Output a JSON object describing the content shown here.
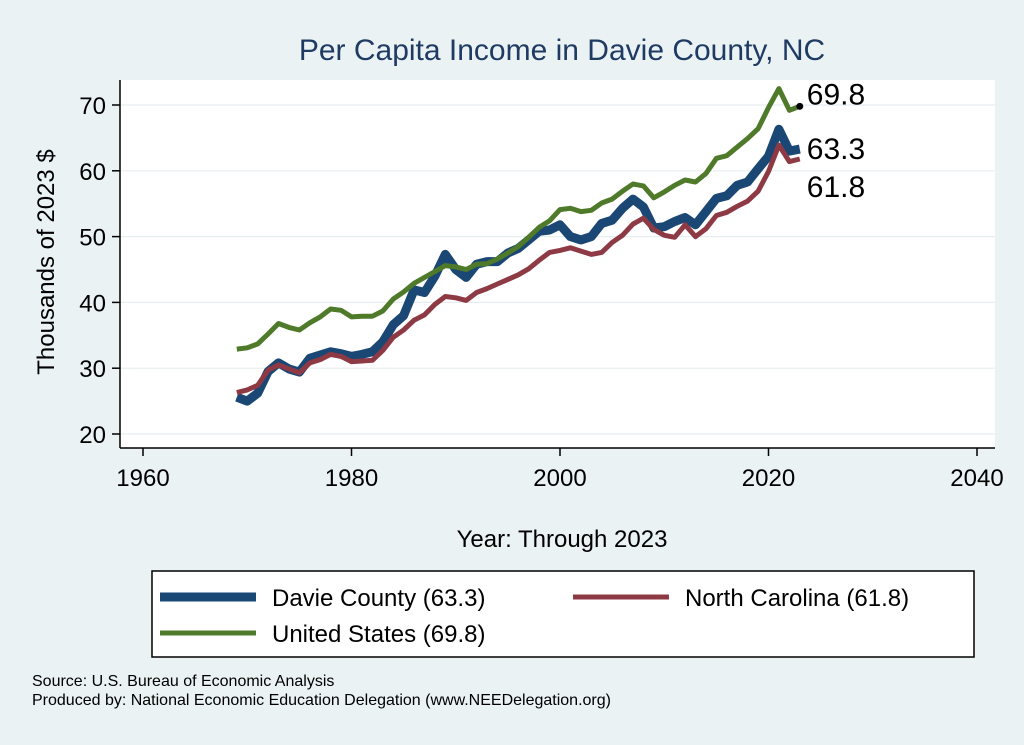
{
  "chart_data": {
    "type": "line",
    "title": "Per Capita Income in Davie County, NC",
    "xlabel": "Year: Through 2023",
    "ylabel": "Thousands of 2023 $",
    "xlim": [
      1960,
      2040
    ],
    "ylim": [
      20,
      75
    ],
    "xticks": [
      1960,
      1980,
      2000,
      2020,
      2040
    ],
    "yticks": [
      20,
      30,
      40,
      50,
      60,
      70
    ],
    "grid": "horizontal",
    "legend_placement": "bottom",
    "series": [
      {
        "name": "Davie County (63.3)",
        "color": "#1a4773",
        "width": 9,
        "end_label": "63.3",
        "points": [
          [
            1969,
            25.6
          ],
          [
            1970,
            25.0
          ],
          [
            1971,
            26.2
          ],
          [
            1972,
            29.5
          ],
          [
            1973,
            30.8
          ],
          [
            1974,
            29.9
          ],
          [
            1975,
            29.4
          ],
          [
            1976,
            31.5
          ],
          [
            1977,
            32.0
          ],
          [
            1978,
            32.5
          ],
          [
            1979,
            32.2
          ],
          [
            1980,
            31.8
          ],
          [
            1981,
            32.1
          ],
          [
            1982,
            32.5
          ],
          [
            1983,
            34.0
          ],
          [
            1984,
            36.6
          ],
          [
            1985,
            38.0
          ],
          [
            1986,
            41.9
          ],
          [
            1987,
            41.5
          ],
          [
            1988,
            44.0
          ],
          [
            1989,
            47.3
          ],
          [
            1990,
            45.0
          ],
          [
            1991,
            43.8
          ],
          [
            1992,
            45.8
          ],
          [
            1993,
            46.2
          ],
          [
            1994,
            46.2
          ],
          [
            1995,
            47.5
          ],
          [
            1996,
            48.2
          ],
          [
            1997,
            49.5
          ],
          [
            1998,
            50.8
          ],
          [
            1999,
            51.0
          ],
          [
            2000,
            51.8
          ],
          [
            2001,
            50.0
          ],
          [
            2002,
            49.5
          ],
          [
            2003,
            50.0
          ],
          [
            2004,
            52.0
          ],
          [
            2005,
            52.5
          ],
          [
            2006,
            54.3
          ],
          [
            2007,
            55.7
          ],
          [
            2008,
            54.5
          ],
          [
            2009,
            51.3
          ],
          [
            2010,
            51.5
          ],
          [
            2011,
            52.3
          ],
          [
            2012,
            52.9
          ],
          [
            2013,
            51.8
          ],
          [
            2014,
            53.8
          ],
          [
            2015,
            55.8
          ],
          [
            2016,
            56.2
          ],
          [
            2017,
            57.8
          ],
          [
            2018,
            58.3
          ],
          [
            2019,
            60.3
          ],
          [
            2020,
            62.2
          ],
          [
            2021,
            66.3
          ],
          [
            2022,
            63.0
          ],
          [
            2023,
            63.3
          ]
        ]
      },
      {
        "name": "North Carolina (61.8)",
        "color": "#8e3a45",
        "width": 5,
        "end_label": "61.8",
        "points": [
          [
            1969,
            26.3
          ],
          [
            1970,
            26.7
          ],
          [
            1971,
            27.4
          ],
          [
            1972,
            29.7
          ],
          [
            1973,
            30.5
          ],
          [
            1974,
            29.9
          ],
          [
            1975,
            29.3
          ],
          [
            1976,
            30.8
          ],
          [
            1977,
            31.3
          ],
          [
            1978,
            32.1
          ],
          [
            1979,
            31.8
          ],
          [
            1980,
            31.0
          ],
          [
            1981,
            31.1
          ],
          [
            1982,
            31.2
          ],
          [
            1983,
            32.7
          ],
          [
            1984,
            34.7
          ],
          [
            1985,
            35.8
          ],
          [
            1986,
            37.3
          ],
          [
            1987,
            38.1
          ],
          [
            1988,
            39.7
          ],
          [
            1989,
            40.9
          ],
          [
            1990,
            40.7
          ],
          [
            1991,
            40.3
          ],
          [
            1992,
            41.5
          ],
          [
            1993,
            42.1
          ],
          [
            1994,
            42.8
          ],
          [
            1995,
            43.5
          ],
          [
            1996,
            44.2
          ],
          [
            1997,
            45.1
          ],
          [
            1998,
            46.4
          ],
          [
            1999,
            47.6
          ],
          [
            2000,
            47.9
          ],
          [
            2001,
            48.3
          ],
          [
            2002,
            47.8
          ],
          [
            2003,
            47.3
          ],
          [
            2004,
            47.6
          ],
          [
            2005,
            49.1
          ],
          [
            2006,
            50.2
          ],
          [
            2007,
            51.9
          ],
          [
            2008,
            52.8
          ],
          [
            2009,
            51.1
          ],
          [
            2010,
            50.2
          ],
          [
            2011,
            49.9
          ],
          [
            2012,
            51.8
          ],
          [
            2013,
            50.0
          ],
          [
            2014,
            51.2
          ],
          [
            2015,
            53.2
          ],
          [
            2016,
            53.7
          ],
          [
            2017,
            54.6
          ],
          [
            2018,
            55.4
          ],
          [
            2019,
            56.9
          ],
          [
            2020,
            59.9
          ],
          [
            2021,
            63.9
          ],
          [
            2022,
            61.4
          ],
          [
            2023,
            61.8
          ]
        ]
      },
      {
        "name": "United States (69.8)",
        "color": "#4f7a2a",
        "width": 5,
        "end_label": "69.8",
        "points": [
          [
            1969,
            32.9
          ],
          [
            1970,
            33.1
          ],
          [
            1971,
            33.7
          ],
          [
            1972,
            35.2
          ],
          [
            1973,
            36.8
          ],
          [
            1974,
            36.2
          ],
          [
            1975,
            35.8
          ],
          [
            1976,
            36.9
          ],
          [
            1977,
            37.8
          ],
          [
            1978,
            39.0
          ],
          [
            1979,
            38.8
          ],
          [
            1980,
            37.8
          ],
          [
            1981,
            37.9
          ],
          [
            1982,
            37.9
          ],
          [
            1983,
            38.7
          ],
          [
            1984,
            40.5
          ],
          [
            1985,
            41.6
          ],
          [
            1986,
            42.9
          ],
          [
            1987,
            43.8
          ],
          [
            1988,
            44.7
          ],
          [
            1989,
            45.6
          ],
          [
            1990,
            45.4
          ],
          [
            1991,
            45.0
          ],
          [
            1992,
            45.8
          ],
          [
            1993,
            45.9
          ],
          [
            1994,
            46.6
          ],
          [
            1995,
            47.5
          ],
          [
            1996,
            48.5
          ],
          [
            1997,
            49.9
          ],
          [
            1998,
            51.4
          ],
          [
            1999,
            52.4
          ],
          [
            2000,
            54.1
          ],
          [
            2001,
            54.3
          ],
          [
            2002,
            53.8
          ],
          [
            2003,
            54.0
          ],
          [
            2004,
            55.1
          ],
          [
            2005,
            55.7
          ],
          [
            2006,
            56.9
          ],
          [
            2007,
            58.0
          ],
          [
            2008,
            57.7
          ],
          [
            2009,
            55.9
          ],
          [
            2010,
            56.8
          ],
          [
            2011,
            57.8
          ],
          [
            2012,
            58.6
          ],
          [
            2013,
            58.3
          ],
          [
            2014,
            59.6
          ],
          [
            2015,
            61.9
          ],
          [
            2016,
            62.3
          ],
          [
            2017,
            63.6
          ],
          [
            2018,
            64.9
          ],
          [
            2019,
            66.4
          ],
          [
            2020,
            69.6
          ],
          [
            2021,
            72.5
          ],
          [
            2022,
            69.2
          ],
          [
            2023,
            69.8
          ]
        ]
      }
    ]
  },
  "legend": {
    "items": [
      {
        "label": "Davie County (63.3)",
        "color": "#1a4773"
      },
      {
        "label": "North Carolina (61.8)",
        "color": "#8e3a45"
      },
      {
        "label": "United States (69.8)",
        "color": "#4f7a2a"
      }
    ]
  },
  "source": {
    "line1": "Source: U.S. Bureau of Economic Analysis",
    "line2": "Produced by: National Economic Education Delegation (www.NEEDelegation.org)"
  }
}
